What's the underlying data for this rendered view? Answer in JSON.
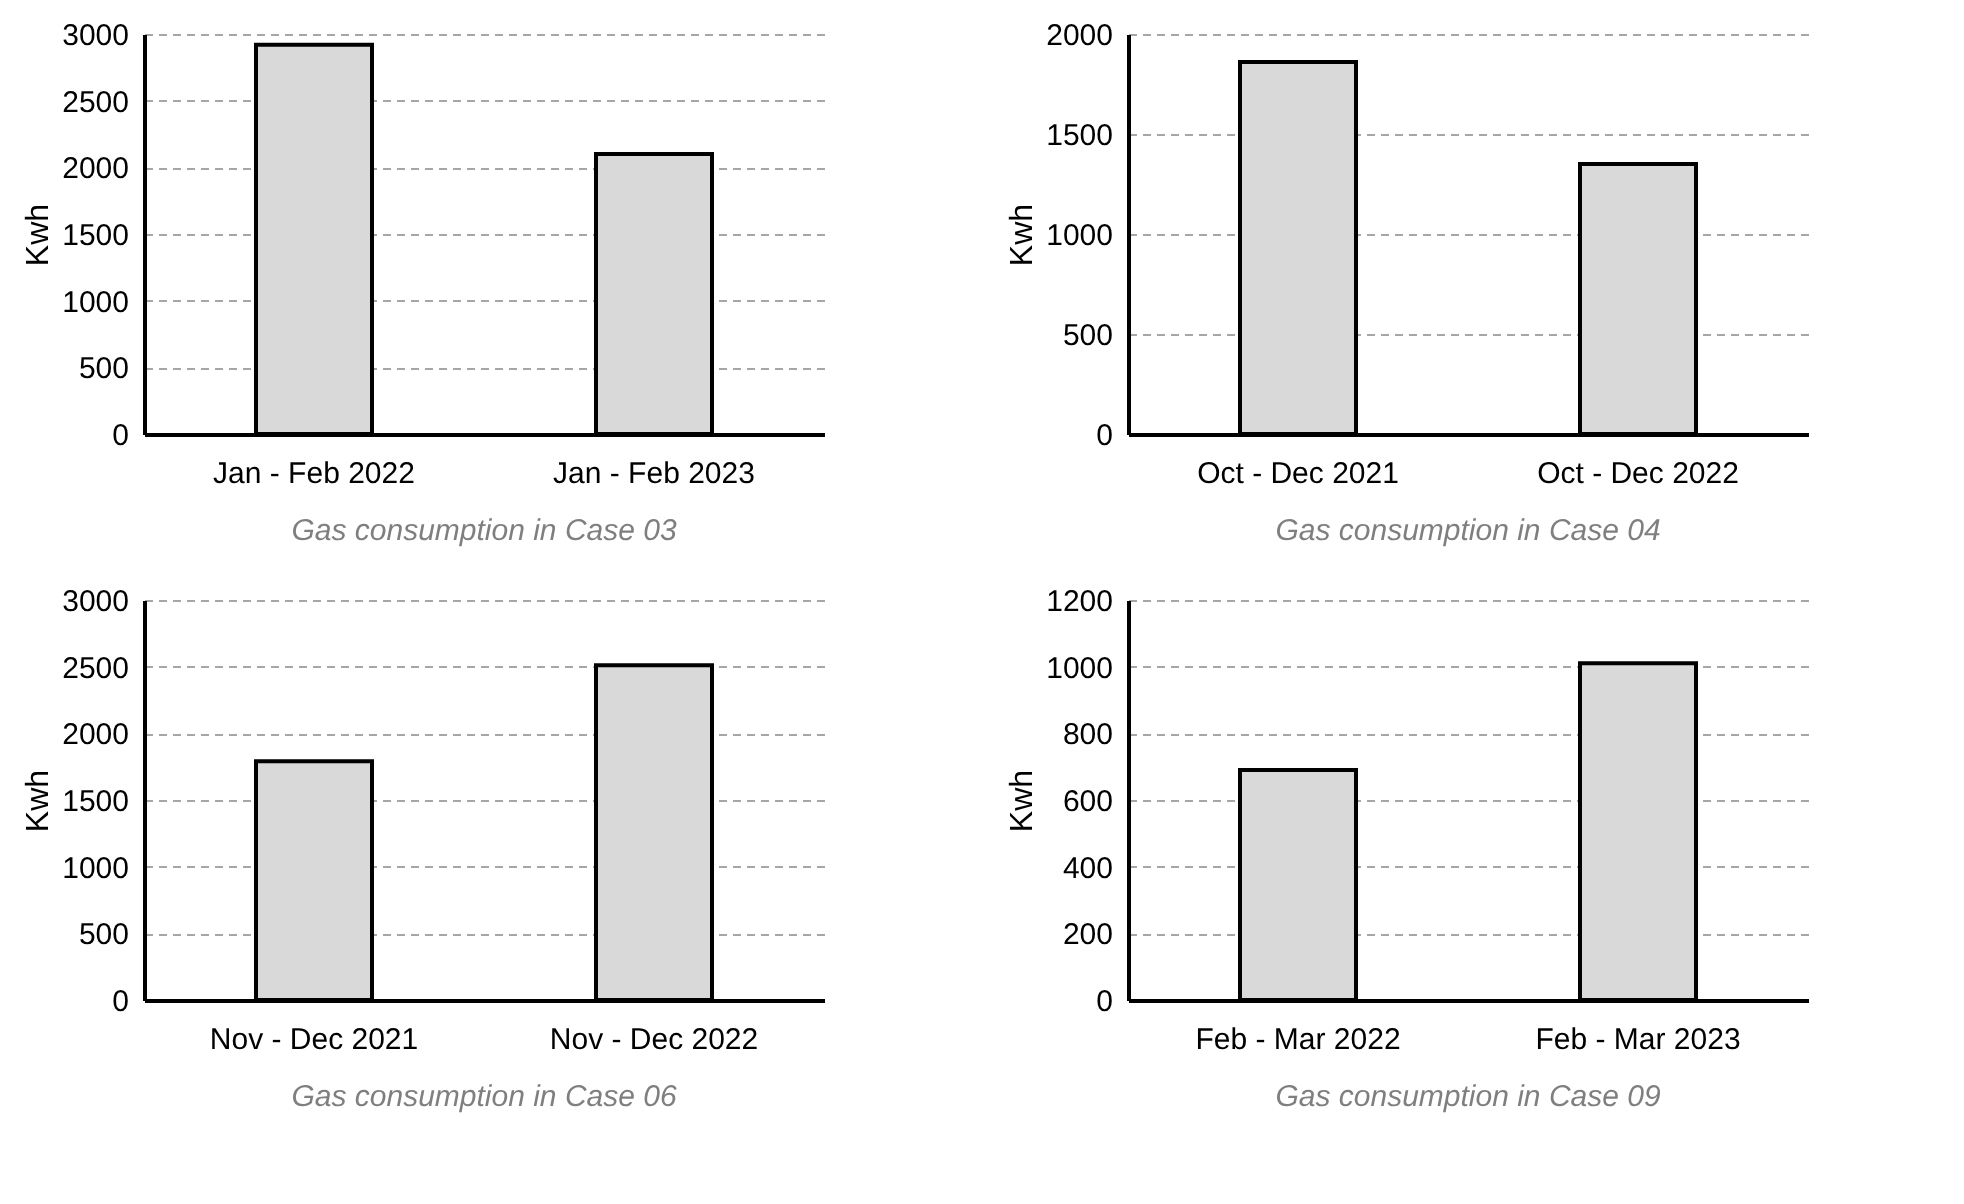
{
  "chart_data": [
    {
      "type": "bar",
      "title": "Gas consumption in Case 03",
      "ylabel": "Kwh",
      "categories": [
        "Jan - Feb 2022",
        "Jan - Feb 2023"
      ],
      "values": [
        2920,
        2100
      ],
      "color": "#d9d9d9",
      "ylim": [
        0,
        3000
      ],
      "yticks": [
        0,
        500,
        1000,
        1500,
        2000,
        2500,
        3000
      ],
      "grid": "y"
    },
    {
      "type": "bar",
      "title": "Gas consumption in Case 04",
      "ylabel": "Kwh",
      "categories": [
        "Oct - Dec 2021",
        "Oct - Dec 2022"
      ],
      "values": [
        1860,
        1350
      ],
      "color": "#d9d9d9",
      "ylim": [
        0,
        2000
      ],
      "yticks": [
        0,
        500,
        1000,
        1500,
        2000
      ],
      "grid": "y"
    },
    {
      "type": "bar",
      "title": "Gas consumption in Case 06",
      "ylabel": "Kwh",
      "categories": [
        "Nov - Dec 2021",
        "Nov - Dec 2022"
      ],
      "values": [
        1790,
        2510
      ],
      "color": "#d9d9d9",
      "ylim": [
        0,
        3000
      ],
      "yticks": [
        0,
        500,
        1000,
        1500,
        2000,
        2500,
        3000
      ],
      "grid": "y"
    },
    {
      "type": "bar",
      "title": "Gas consumption in Case 09",
      "ylabel": "Kwh",
      "categories": [
        "Feb - Mar 2022",
        "Feb - Mar 2023"
      ],
      "values": [
        690,
        1010
      ],
      "color": "#d9d9d9",
      "ylim": [
        0,
        1200
      ],
      "yticks": [
        0,
        200,
        400,
        600,
        800,
        1000,
        1200
      ],
      "grid": "y"
    }
  ]
}
